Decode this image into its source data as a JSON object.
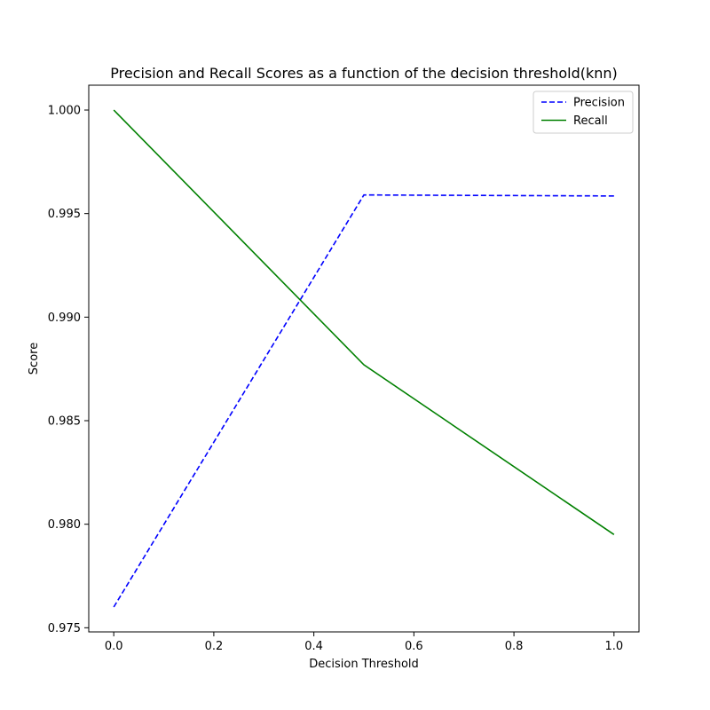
{
  "chart_data": {
    "type": "line",
    "title": "Precision and Recall Scores as a function of the decision threshold(knn)",
    "xlabel": "Decision Threshold",
    "ylabel": "Score",
    "xlim": [
      -0.05,
      1.05
    ],
    "ylim": [
      0.9748,
      1.0012
    ],
    "xticks": [
      0.0,
      0.2,
      0.4,
      0.6,
      0.8,
      1.0
    ],
    "xtick_labels": [
      "0.0",
      "0.2",
      "0.4",
      "0.6",
      "0.8",
      "1.0"
    ],
    "yticks": [
      0.975,
      0.98,
      0.985,
      0.99,
      0.995,
      1.0
    ],
    "ytick_labels": [
      "0.975",
      "0.980",
      "0.985",
      "0.990",
      "0.995",
      "1.000"
    ],
    "grid": false,
    "legend_position": "top-right",
    "series": [
      {
        "name": "Precision",
        "color": "#0000ff",
        "linestyle": "dashed",
        "x": [
          0.0,
          0.5,
          1.0
        ],
        "y": [
          0.976,
          0.9959,
          0.99585
        ]
      },
      {
        "name": "Recall",
        "color": "#008000",
        "linestyle": "solid",
        "x": [
          0.0,
          0.5,
          1.0
        ],
        "y": [
          1.0,
          0.9877,
          0.9795
        ]
      }
    ]
  }
}
